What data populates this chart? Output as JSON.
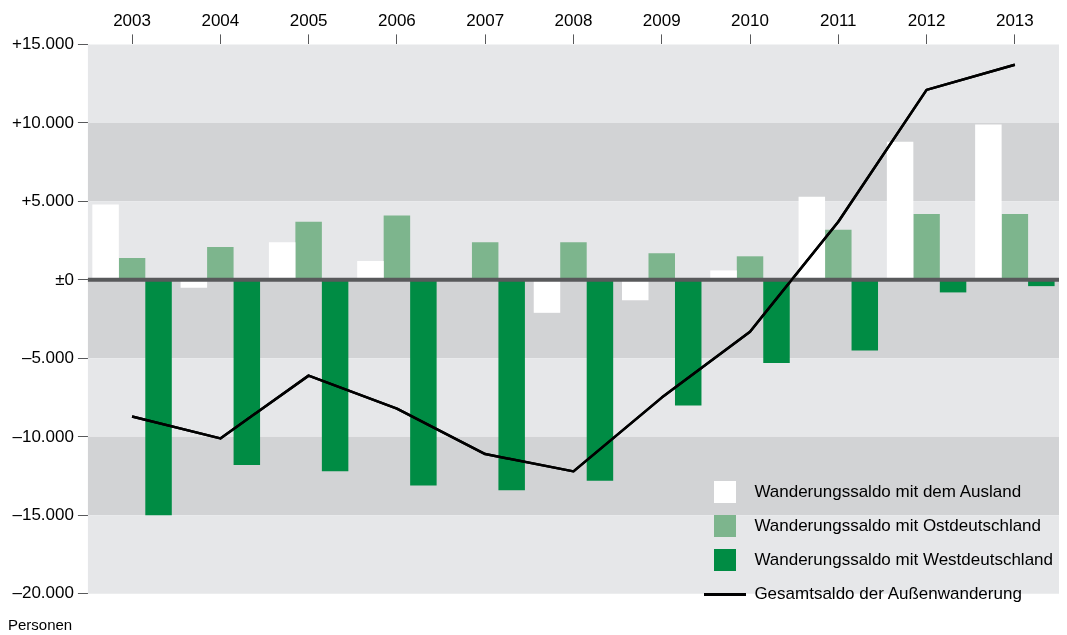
{
  "chart_data": {
    "type": "bar",
    "ylabel": "Personen",
    "categories": [
      "2003",
      "2004",
      "2005",
      "2006",
      "2007",
      "2008",
      "2009",
      "2010",
      "2011",
      "2012",
      "2013"
    ],
    "series": [
      {
        "name": "Wanderungssaldo mit dem Ausland",
        "color": "#ffffff",
        "values": [
          4800,
          -500,
          2400,
          1200,
          0,
          -2100,
          -1300,
          600,
          5300,
          8800,
          9900
        ]
      },
      {
        "name": "Wanderungssaldo mit Ostdeutschland",
        "color": "#7db58d",
        "values": [
          1400,
          2100,
          3700,
          4100,
          2400,
          2400,
          1700,
          1500,
          3200,
          4200,
          4200
        ]
      },
      {
        "name": "Wanderungssaldo mit Westdeutschland",
        "color": "#008c44",
        "values": [
          -15000,
          -11800,
          -12200,
          -13100,
          -13400,
          -12800,
          -8000,
          -5300,
          -4500,
          -800,
          -400
        ]
      },
      {
        "name": "Gesamtsaldo der Außenwanderung",
        "type": "line",
        "color": "#000000",
        "values": [
          -8700,
          -10100,
          -6100,
          -8200,
          -11100,
          -12200,
          -7500,
          -3300,
          3700,
          12100,
          13700
        ]
      }
    ],
    "ylim": [
      -20000,
      15000
    ],
    "yticks": [
      {
        "value": -20000,
        "label": "–20.000"
      },
      {
        "value": -15000,
        "label": "–15.000"
      },
      {
        "value": -10000,
        "label": "–10.000"
      },
      {
        "value": -5000,
        "label": "–5.000"
      },
      {
        "value": 0,
        "label": "±0"
      },
      {
        "value": 5000,
        "label": "+5.000"
      },
      {
        "value": 10000,
        "label": "+10.000"
      },
      {
        "value": 15000,
        "label": "+15.000"
      }
    ],
    "bands": [
      {
        "axis": "y",
        "from": 10000,
        "to": 15000,
        "color": "#e6e7e9"
      },
      {
        "axis": "y",
        "from": 5000,
        "to": 10000,
        "color": "#d2d3d5"
      },
      {
        "axis": "y",
        "from": 0,
        "to": 5000,
        "color": "#e6e7e9"
      },
      {
        "axis": "y",
        "from": -5000,
        "to": 0,
        "color": "#d2d3d5"
      },
      {
        "axis": "y",
        "from": -10000,
        "to": -5000,
        "color": "#e6e7e9"
      },
      {
        "axis": "y",
        "from": -15000,
        "to": -10000,
        "color": "#d2d3d5"
      },
      {
        "axis": "y",
        "from": -20000,
        "to": -15000,
        "color": "#e6e7e9"
      }
    ],
    "ref_lines": [
      {
        "axis": "y",
        "value": 0,
        "color": "#58595b"
      }
    ],
    "grid": false,
    "marker": "none",
    "line_style": "solid",
    "legend": "bottom right"
  }
}
